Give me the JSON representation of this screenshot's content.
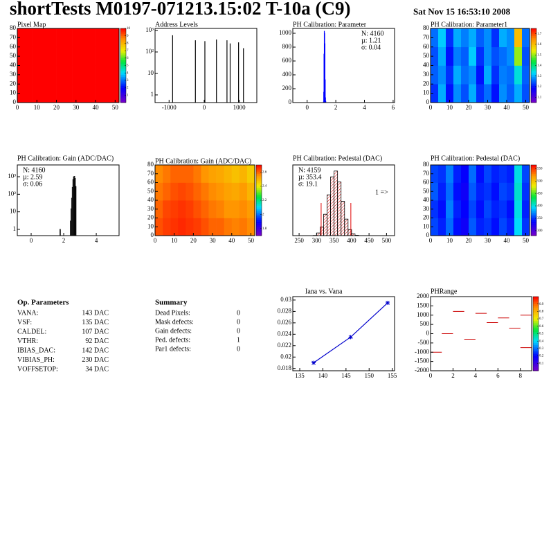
{
  "header": {
    "title": "shortTests M0197-071213.15:02 T-10a (C9)",
    "date": "Sat Nov 15 16:53:10 2008"
  },
  "chart_data": [
    {
      "type": "heatmap",
      "title": "Pixel Map",
      "xlim": [
        0,
        52
      ],
      "ylim": [
        0,
        80
      ],
      "xticks": [
        0,
        10,
        20,
        30,
        40,
        50
      ],
      "yticks": [
        0,
        10,
        20,
        30,
        40,
        50,
        60,
        70,
        80
      ],
      "xbins": [
        0,
        4,
        8,
        12,
        16,
        20,
        24,
        28,
        32,
        36,
        40,
        44,
        48,
        52
      ],
      "ybins": [
        0,
        20,
        40,
        60,
        80
      ],
      "z": [
        [
          10,
          10,
          10,
          10,
          10,
          10,
          10,
          10,
          10,
          10,
          10,
          10,
          10
        ],
        [
          10,
          10,
          10,
          10,
          10,
          10,
          10,
          10,
          10,
          10,
          10,
          10,
          10
        ],
        [
          10,
          10,
          10,
          10,
          10,
          10,
          10,
          10,
          10,
          10,
          10,
          10,
          10
        ],
        [
          10,
          10,
          10,
          10,
          10,
          10,
          10,
          10,
          10,
          10,
          10,
          10,
          10
        ]
      ],
      "zlim": [
        0,
        10
      ],
      "zticks": [
        1,
        2,
        3,
        4,
        5,
        6,
        7,
        8,
        9,
        10
      ]
    },
    {
      "type": "spike",
      "title": "Address Levels",
      "xlim": [
        -1400,
        1500
      ],
      "ylim": [
        0.44,
        1250
      ],
      "log_y": true,
      "color": "#000000",
      "xticks": [
        -1000,
        0,
        1000
      ],
      "yticks": [
        1,
        10,
        {
          "value": 100,
          "label": "10²"
        },
        {
          "value": 1000,
          "label": "10³"
        }
      ],
      "x": [
        -900,
        -250,
        20,
        350,
        650,
        740,
        980,
        1120
      ],
      "values": [
        600,
        350,
        320,
        380,
        350,
        250,
        280,
        150
      ]
    },
    {
      "type": "histogram",
      "title": "PH Calibration: Parameter",
      "xlim": [
        -1,
        6.1
      ],
      "ylim": [
        0,
        1070
      ],
      "color": "#0000ff",
      "xticks": [
        0,
        2,
        4,
        6
      ],
      "yticks": [
        0,
        200,
        400,
        600,
        800,
        1000
      ],
      "bins": [
        1.13,
        1.15,
        1.17,
        1.19,
        1.21,
        1.23,
        1.25,
        1.27,
        1.29,
        1.31
      ],
      "values": [
        10,
        150,
        700,
        1030,
        1000,
        850,
        330,
        70,
        20
      ],
      "stats": [
        {
          "text": "N: 4160",
          "color": "#0000ff"
        },
        {
          "text": "µ: 1.21",
          "color": "#0000ff"
        },
        {
          "text": "σ: 0.04",
          "color": "#0000ff"
        }
      ],
      "stats_corner": "upper right"
    },
    {
      "type": "heatmap",
      "title": "PH Calibration: Parameter1",
      "xlim": [
        0,
        52
      ],
      "ylim": [
        0,
        80
      ],
      "xticks": [
        0,
        10,
        20,
        30,
        40,
        50
      ],
      "yticks": [
        0,
        10,
        20,
        30,
        40,
        50,
        60,
        70,
        80
      ],
      "xbins": [
        0,
        4,
        8,
        12,
        16,
        20,
        24,
        28,
        32,
        36,
        40,
        44,
        48,
        52
      ],
      "ybins": [
        0,
        20,
        40,
        60,
        80
      ],
      "z": [
        [
          1.22,
          1.3,
          1.2,
          1.28,
          1.24,
          1.3,
          1.22,
          1.26,
          1.2,
          1.28,
          1.25,
          1.3,
          1.24
        ],
        [
          1.25,
          1.28,
          1.22,
          1.3,
          1.26,
          1.28,
          1.2,
          1.3,
          1.22,
          1.27,
          1.26,
          1.35,
          1.25
        ],
        [
          1.24,
          1.3,
          1.2,
          1.27,
          1.25,
          1.32,
          1.22,
          1.28,
          1.24,
          1.26,
          1.28,
          1.5,
          1.24
        ],
        [
          1.26,
          1.32,
          1.22,
          1.3,
          1.27,
          1.3,
          1.25,
          1.28,
          1.22,
          1.3,
          1.28,
          1.6,
          1.26
        ]
      ],
      "zlim": [
        1.05,
        1.75
      ],
      "zticks": [
        1.1,
        1.2,
        1.3,
        1.4,
        1.5,
        1.6,
        1.7
      ]
    },
    {
      "type": "histogram",
      "title": "PH Calibration: Gain (ADC/DAC)",
      "xlim": [
        -0.85,
        5.4
      ],
      "ylim": [
        0.44,
        4700
      ],
      "log_y": true,
      "color": "#000000",
      "xticks": [
        0,
        2,
        4
      ],
      "yticks": [
        1,
        10,
        {
          "value": 100,
          "label": "10²"
        },
        {
          "value": 1000,
          "label": "10³"
        }
      ],
      "bins": [
        1.76,
        1.8,
        1.84,
        1.88,
        1.92,
        1.96,
        2.0,
        2.04,
        2.08,
        2.12,
        2.16,
        2.2,
        2.24,
        2.28,
        2.32,
        2.36,
        2.4,
        2.44,
        2.48,
        2.52,
        2.56,
        2.6,
        2.64,
        2.68,
        2.72,
        2.76
      ],
      "values": [
        1,
        0,
        0,
        0,
        0,
        0,
        0,
        0,
        0,
        0,
        0,
        0,
        0,
        0,
        0,
        0,
        3,
        15,
        60,
        250,
        700,
        1000,
        1050,
        800,
        281
      ],
      "stats": [
        {
          "text": "N: 4160",
          "color": "#000000"
        },
        {
          "text": "µ: 2.59",
          "color": "#000000"
        },
        {
          "text": "σ: 0.06",
          "color": "#000000"
        }
      ],
      "stats_corner": "upper left"
    },
    {
      "type": "heatmap",
      "title": "PH Calibration: Gain (ADC/DAC)",
      "xlim": [
        0,
        52
      ],
      "ylim": [
        0,
        80
      ],
      "xticks": [
        0,
        10,
        20,
        30,
        40,
        50
      ],
      "yticks": [
        0,
        10,
        20,
        30,
        40,
        50,
        60,
        70,
        80
      ],
      "xbins": [
        0,
        4,
        8,
        12,
        16,
        20,
        24,
        28,
        32,
        36,
        40,
        44,
        48,
        52
      ],
      "ybins": [
        0,
        20,
        40,
        60,
        80
      ],
      "z": [
        [
          2.62,
          2.64,
          2.65,
          2.66,
          2.65,
          2.64,
          2.62,
          2.6,
          2.6,
          2.58,
          2.57,
          2.58,
          2.56
        ],
        [
          2.6,
          2.63,
          2.64,
          2.65,
          2.64,
          2.62,
          2.6,
          2.58,
          2.57,
          2.55,
          2.55,
          2.56,
          2.54
        ],
        [
          2.58,
          2.6,
          2.62,
          2.63,
          2.62,
          2.6,
          2.58,
          2.56,
          2.55,
          2.53,
          2.52,
          2.54,
          2.5
        ],
        [
          2.56,
          2.58,
          2.6,
          2.6,
          2.6,
          2.58,
          2.55,
          2.53,
          2.52,
          2.5,
          2.48,
          2.5,
          2.46
        ]
      ],
      "zlim": [
        1.7,
        2.7
      ],
      "zticks": [
        1.8,
        2,
        2.2,
        2.4,
        2.6
      ]
    },
    {
      "type": "histogram",
      "title": "PH Calibration: Pedestal (DAC)",
      "xlim": [
        232,
        523
      ],
      "ylim": [
        0,
        950
      ],
      "color": "#000000",
      "fill_color": "#e00000",
      "xticks": [
        250,
        300,
        350,
        400,
        450,
        500
      ],
      "yticks": [],
      "bins": [
        290,
        300,
        310,
        320,
        330,
        340,
        350,
        360,
        370,
        380,
        390,
        400,
        410,
        420
      ],
      "values": [
        3,
        36,
        115,
        287,
        548,
        790,
        868,
        721,
        460,
        222,
        81,
        23,
        5
      ],
      "cut_lines": [
        313,
        398
      ],
      "cut_color": "#e00000",
      "annotation": "1 =>",
      "stats": [
        {
          "text": "N: 4159",
          "color": "#000000"
        },
        {
          "text": "µ: 353.4",
          "color": "#e00000"
        },
        {
          "text": "σ: 19.1",
          "color": "#e00000"
        }
      ],
      "stats_corner": "upper left"
    },
    {
      "type": "heatmap",
      "title": "PH Calibration: Pedestal (DAC)",
      "xlim": [
        0,
        52
      ],
      "ylim": [
        0,
        80
      ],
      "xticks": [
        0,
        10,
        20,
        30,
        40,
        50
      ],
      "yticks": [
        0,
        10,
        20,
        30,
        40,
        50,
        60,
        70,
        80
      ],
      "xbins": [
        0,
        4,
        8,
        12,
        16,
        20,
        24,
        28,
        32,
        36,
        40,
        44,
        48,
        52
      ],
      "ybins": [
        0,
        20,
        40,
        60,
        80
      ],
      "z": [
        [
          355,
          345,
          365,
          340,
          330,
          360,
          345,
          350,
          340,
          355,
          345,
          395,
          350
        ],
        [
          350,
          340,
          370,
          345,
          335,
          355,
          340,
          355,
          345,
          350,
          340,
          400,
          345
        ],
        [
          360,
          345,
          365,
          340,
          330,
          360,
          345,
          350,
          340,
          355,
          350,
          405,
          350
        ],
        [
          355,
          350,
          370,
          345,
          335,
          365,
          340,
          355,
          345,
          350,
          345,
          400,
          355
        ]
      ],
      "zlim": [
        280,
        565
      ],
      "zticks": [
        300,
        350,
        400,
        450,
        500,
        550
      ]
    },
    {
      "type": "line",
      "title": "Iana vs. Vana",
      "xlim": [
        133.5,
        155.5
      ],
      "ylim": [
        0.0176,
        0.0306
      ],
      "color": "#0000cc",
      "xticks": [
        135,
        140,
        145,
        150,
        155
      ],
      "yticks": [
        0.018,
        0.02,
        0.022,
        0.024,
        0.026,
        0.028,
        0.03
      ],
      "x": [
        138,
        146,
        154
      ],
      "values": [
        0.019,
        0.0235,
        0.0295
      ]
    },
    {
      "type": "segment",
      "title": "PHRange",
      "xlim": [
        0,
        9
      ],
      "ylim": [
        -2000,
        2000
      ],
      "color": "#cc0000",
      "xticks": [
        0,
        2,
        4,
        6,
        8
      ],
      "yticks": [
        -2000,
        -1500,
        -1000,
        -500,
        0,
        500,
        1000,
        1500,
        2000
      ],
      "x": [
        0,
        1,
        2,
        3,
        4,
        5,
        6,
        7,
        8,
        8
      ],
      "values": [
        -1000,
        0,
        1200,
        -300,
        1100,
        600,
        850,
        300,
        1000,
        -750
      ],
      "zlim": [
        0,
        1
      ],
      "zticks": [
        0.1,
        0.2,
        0.3,
        0.4,
        0.5,
        0.6,
        0.7,
        0.8,
        0.9
      ]
    }
  ],
  "op_parameters": {
    "title": "Op. Parameters",
    "rows": [
      [
        "VANA:",
        "143 DAC"
      ],
      [
        "VSF:",
        "135 DAC"
      ],
      [
        "CALDEL:",
        "107 DAC"
      ],
      [
        "VTHR:",
        "92 DAC"
      ],
      [
        "IBIAS_DAC:",
        "142 DAC"
      ],
      [
        "VIBIAS_PH:",
        "230 DAC"
      ],
      [
        "VOFFSETOP:",
        "34 DAC"
      ]
    ]
  },
  "summary": {
    "title": "Summary",
    "rows": [
      [
        "Dead Pixels:",
        0
      ],
      [
        "Mask defects:",
        0
      ],
      [
        "Gain defects:",
        0
      ],
      [
        "Ped. defects:",
        1
      ],
      [
        "Par1 defects:",
        0
      ]
    ],
    "row_colors": [
      "#000000",
      "#000000",
      "#000000",
      "#e00000",
      "#0000cc"
    ]
  }
}
